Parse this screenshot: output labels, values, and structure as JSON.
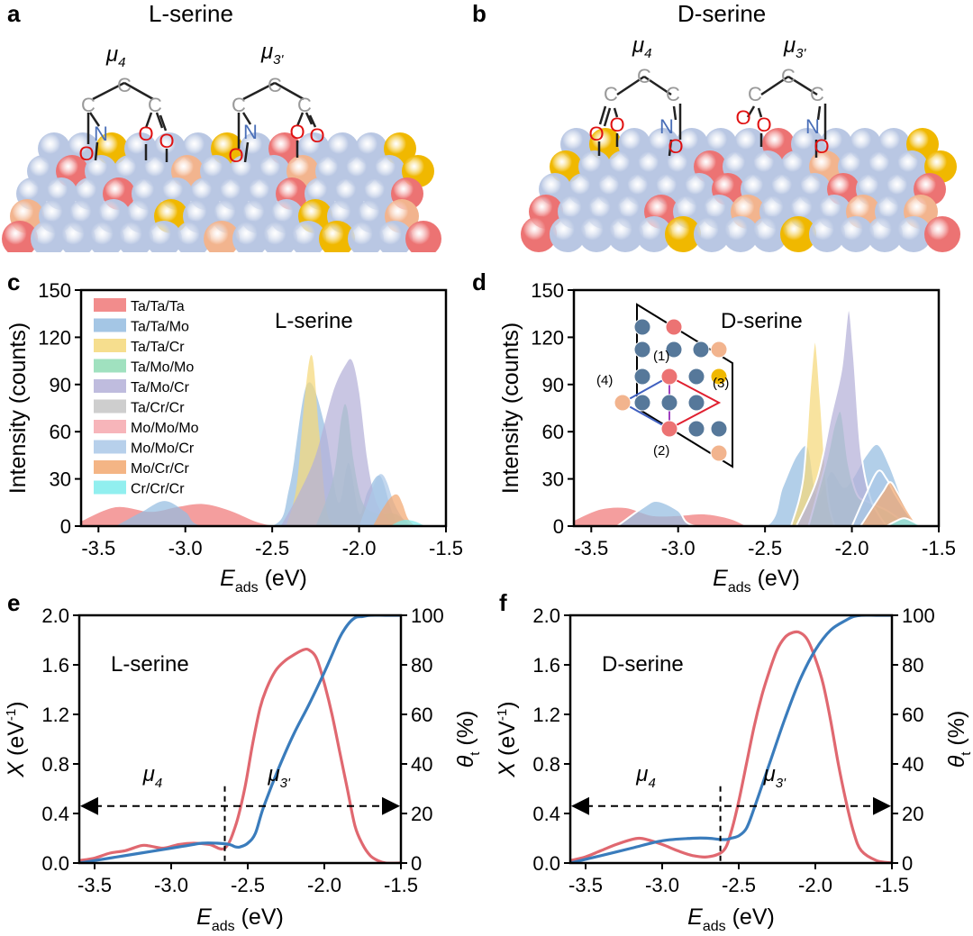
{
  "colors": {
    "TaTaTa": "#f07878",
    "TaTaMo": "#94bce0",
    "TaTaCr": "#f5d87a",
    "TaMoMo": "#8fdcb4",
    "TaMoCr": "#b4b0d8",
    "TaCrCr": "#c6c6c6",
    "MoMoMo": "#f6a8ae",
    "MoMoCr": "#aac8e8",
    "MoCrCr": "#f2a870",
    "CrCrCr": "#7eecec",
    "ta_atom": "#ec7373",
    "mo_atom": "#b9c7e3",
    "cr_atom": "#f0b800",
    "cr2_atom": "#f2b48e",
    "inset_mo": "#56789a",
    "X_curve": "#e06870",
    "theta_curve": "#3a7cbc"
  },
  "panels": {
    "a": {
      "label": "a",
      "title": "L-serine",
      "mu_left": "μ",
      "mu_left_sub": "4",
      "mu_right": "μ",
      "mu_right_sub": "3'"
    },
    "b": {
      "label": "b",
      "title": "D-serine",
      "mu_left": "μ",
      "mu_left_sub": "4",
      "mu_right": "μ",
      "mu_right_sub": "3'"
    },
    "c": {
      "label": "c"
    },
    "d": {
      "label": "d"
    },
    "e": {
      "label": "e"
    },
    "f": {
      "label": "f"
    }
  },
  "molecule": {
    "c": "C",
    "n": "N",
    "o": "O"
  },
  "inset": {
    "site1": "(1)",
    "site2": "(2)",
    "site3": "(3)",
    "site4": "(4)"
  },
  "chart_data": [
    {
      "id": "c",
      "type": "area",
      "title": "L-serine",
      "ylabel": "Intensity (counts)",
      "xlabel_main": "E",
      "xlabel_sub": "ads",
      "xlabel_unit": " (eV)",
      "xlim": [
        -3.6,
        -1.5
      ],
      "ylim": [
        0,
        150
      ],
      "xticks": [
        "-3.5",
        "-3.0",
        "-2.5",
        "-2.0",
        "-1.5"
      ],
      "xtick_values": [
        -3.5,
        -3.0,
        -2.5,
        -2.0,
        -1.5
      ],
      "yticks": [
        "0",
        "30",
        "60",
        "90",
        "120",
        "150"
      ],
      "ytick_values": [
        0,
        30,
        60,
        90,
        120,
        150
      ],
      "legend": [
        "Ta/Ta/Ta",
        "Ta/Ta/Mo",
        "Ta/Ta/Cr",
        "Ta/Mo/Mo",
        "Ta/Mo/Cr",
        "Ta/Cr/Cr",
        "Mo/Mo/Mo",
        "Mo/Mo/Cr",
        "Mo/Cr/Cr",
        "Cr/Cr/Cr"
      ],
      "series": [
        {
          "name": "Ta/Ta/Ta",
          "color_key": "TaTaTa",
          "x": [
            -3.6,
            -3.4,
            -3.2,
            -3.05,
            -2.9,
            -2.75,
            -2.6,
            -2.5
          ],
          "y": [
            3,
            12,
            9,
            12,
            14,
            10,
            3,
            0
          ]
        },
        {
          "name": "Ta/Ta/Mo",
          "color_key": "TaTaMo",
          "x": [
            -3.4,
            -3.25,
            -3.12,
            -3.0,
            -2.9,
            -2.5,
            -2.4,
            -2.3,
            -2.2,
            -2.12,
            -2.06,
            -2.0,
            -1.95,
            -1.88,
            -1.82,
            -1.78
          ],
          "y": [
            0,
            9,
            16,
            9,
            0,
            0,
            25,
            90,
            65,
            15,
            40,
            8,
            22,
            32,
            12,
            0
          ]
        },
        {
          "name": "Ta/Ta/Cr",
          "color_key": "TaTaCr",
          "x": [
            -2.42,
            -2.36,
            -2.31,
            -2.27,
            -2.23,
            -2.19,
            -2.15
          ],
          "y": [
            0,
            25,
            85,
            108,
            60,
            12,
            0
          ]
        },
        {
          "name": "Ta/Mo/Mo",
          "color_key": "TaMoMo",
          "x": [
            -2.25,
            -2.15,
            -2.1,
            -2.07,
            -2.03,
            -1.98,
            -1.9,
            -1.8,
            -1.74,
            -1.7
          ],
          "y": [
            0,
            30,
            70,
            75,
            40,
            15,
            8,
            8,
            4,
            0
          ]
        },
        {
          "name": "Ta/Mo/Cr",
          "color_key": "TaMoCr",
          "x": [
            -2.45,
            -2.35,
            -2.25,
            -2.15,
            -2.08,
            -2.04,
            -2.0,
            -1.95,
            -1.9,
            -1.84,
            -1.8
          ],
          "y": [
            0,
            20,
            45,
            85,
            102,
            105,
            85,
            40,
            15,
            5,
            0
          ]
        },
        {
          "name": "Mo/Mo/Cr",
          "color_key": "MoMoCr",
          "x": [
            -2.0,
            -1.95,
            -1.9,
            -1.87,
            -1.84,
            -1.8,
            -1.75,
            -1.7
          ],
          "y": [
            0,
            15,
            30,
            33,
            28,
            15,
            5,
            0
          ]
        },
        {
          "name": "Mo/Cr/Cr",
          "color_key": "MoCrCr",
          "x": [
            -1.92,
            -1.87,
            -1.82,
            -1.78,
            -1.75,
            -1.72,
            -1.68
          ],
          "y": [
            0,
            10,
            18,
            20,
            14,
            5,
            0
          ]
        },
        {
          "name": "Cr/Cr/Cr",
          "color_key": "CrCrCr",
          "x": [
            -1.82,
            -1.77,
            -1.73,
            -1.68,
            -1.62
          ],
          "y": [
            0,
            3,
            4,
            3,
            0
          ]
        }
      ]
    },
    {
      "id": "d",
      "type": "area",
      "title": "D-serine",
      "ylabel": "Intensity (counts)",
      "xlabel_main": "E",
      "xlabel_sub": "ads",
      "xlabel_unit": " (eV)",
      "xlim": [
        -3.6,
        -1.5
      ],
      "ylim": [
        0,
        150
      ],
      "xticks": [
        "-3.5",
        "-3.0",
        "-2.5",
        "-2.0",
        "-1.5"
      ],
      "xtick_values": [
        -3.5,
        -3.0,
        -2.5,
        -2.0,
        -1.5
      ],
      "yticks": [
        "0",
        "30",
        "60",
        "90",
        "120",
        "150"
      ],
      "ytick_values": [
        0,
        30,
        60,
        90,
        120,
        150
      ],
      "series": [
        {
          "name": "Ta/Ta/Ta",
          "color_key": "TaTaTa",
          "x": [
            -3.6,
            -3.45,
            -3.3,
            -3.15,
            -3.0,
            -2.85,
            -2.7,
            -2.6
          ],
          "y": [
            4,
            11,
            12,
            7,
            7,
            8,
            5,
            0
          ]
        },
        {
          "name": "Ta/Ta/Mo",
          "color_key": "TaTaMo",
          "x": [
            -3.35,
            -3.2,
            -3.12,
            -3.0,
            -2.9,
            -2.5,
            -2.4,
            -2.32,
            -2.25,
            -2.2,
            -2.12,
            -2.05,
            -2.0,
            -1.92,
            -1.85,
            -1.78,
            -1.7,
            -1.62
          ],
          "y": [
            0,
            12,
            16,
            10,
            0,
            0,
            25,
            45,
            50,
            20,
            35,
            25,
            30,
            45,
            52,
            38,
            15,
            0
          ]
        },
        {
          "name": "Ta/Ta/Cr",
          "color_key": "TaTaCr",
          "x": [
            -2.35,
            -2.28,
            -2.24,
            -2.21,
            -2.18,
            -2.14,
            -2.1
          ],
          "y": [
            0,
            30,
            90,
            118,
            80,
            20,
            0
          ]
        },
        {
          "name": "Ta/Mo/Mo",
          "color_key": "TaMoMo",
          "x": [
            -2.25,
            -2.15,
            -2.1,
            -2.06,
            -2.02,
            -1.97,
            -1.9,
            -1.8,
            -1.72,
            -1.65
          ],
          "y": [
            0,
            40,
            65,
            72,
            40,
            20,
            15,
            10,
            4,
            0
          ]
        },
        {
          "name": "Ta/Mo/Cr",
          "color_key": "TaMoCr",
          "x": [
            -2.32,
            -2.2,
            -2.12,
            -2.06,
            -2.02,
            -1.99,
            -1.95,
            -1.9,
            -1.85,
            -1.8
          ],
          "y": [
            0,
            30,
            70,
            100,
            138,
            110,
            50,
            20,
            8,
            0
          ]
        },
        {
          "name": "Mo/Mo/Cr",
          "color_key": "MoMoCr",
          "x": [
            -2.0,
            -1.92,
            -1.85,
            -1.8,
            -1.75,
            -1.68,
            -1.62
          ],
          "y": [
            0,
            20,
            35,
            30,
            20,
            8,
            0
          ]
        },
        {
          "name": "Mo/Cr/Cr",
          "color_key": "MoCrCr",
          "x": [
            -1.95,
            -1.88,
            -1.82,
            -1.78,
            -1.74,
            -1.68,
            -1.62
          ],
          "y": [
            0,
            12,
            22,
            28,
            22,
            10,
            0
          ]
        },
        {
          "name": "Cr/Cr/Cr",
          "color_key": "CrCrCr",
          "x": [
            -1.8,
            -1.75,
            -1.7,
            -1.65,
            -1.6
          ],
          "y": [
            0,
            3,
            5,
            3,
            0
          ]
        }
      ]
    },
    {
      "id": "e",
      "type": "line",
      "title": "L-serine",
      "ylabel_main": "X",
      "ylabel_unit": " (eV",
      "ylabel_sup": "-1",
      "ylabel_close": ")",
      "y2label_main": "θ",
      "y2label_sub": "t",
      "y2label_unit": " (%)",
      "xlabel_main": "E",
      "xlabel_sub": "ads",
      "xlabel_unit": " (eV)",
      "xlim": [
        -3.6,
        -1.5
      ],
      "ylim": [
        0,
        2.0
      ],
      "y2lim": [
        0,
        100
      ],
      "xticks": [
        "-3.5",
        "-3.0",
        "-2.5",
        "-2.0",
        "-1.5"
      ],
      "xtick_values": [
        -3.5,
        -3.0,
        -2.5,
        -2.0,
        -1.5
      ],
      "yticks": [
        "0.0",
        "0.4",
        "0.8",
        "1.2",
        "1.6",
        "2.0"
      ],
      "ytick_values": [
        0.0,
        0.4,
        0.8,
        1.2,
        1.6,
        2.0
      ],
      "y2ticks": [
        "0",
        "20",
        "40",
        "60",
        "80",
        "100"
      ],
      "y2tick_values": [
        0,
        20,
        40,
        60,
        80,
        100
      ],
      "divider_x": -2.65,
      "arrow_y": 0.46,
      "mu_left": "μ",
      "mu_left_sub": "4",
      "mu_right": "μ",
      "mu_right_sub": "3'",
      "series": [
        {
          "name": "X",
          "axis": "left",
          "color_key": "X_curve",
          "x": [
            -3.6,
            -3.5,
            -3.4,
            -3.3,
            -3.2,
            -3.15,
            -3.05,
            -2.95,
            -2.85,
            -2.75,
            -2.65,
            -2.58,
            -2.52,
            -2.47,
            -2.42,
            -2.38,
            -2.32,
            -2.26,
            -2.2,
            -2.14,
            -2.1,
            -2.05,
            -2.0,
            -1.95,
            -1.9,
            -1.85,
            -1.8,
            -1.75,
            -1.7,
            -1.65,
            -1.6,
            -1.5
          ],
          "y": [
            0.02,
            0.04,
            0.08,
            0.1,
            0.14,
            0.14,
            0.12,
            0.15,
            0.16,
            0.15,
            0.12,
            0.3,
            0.6,
            0.95,
            1.25,
            1.4,
            1.55,
            1.63,
            1.68,
            1.72,
            1.72,
            1.65,
            1.45,
            1.2,
            0.9,
            0.6,
            0.3,
            0.15,
            0.06,
            0.02,
            0.0,
            0.0
          ]
        },
        {
          "name": "θt",
          "axis": "right",
          "color_key": "theta_curve",
          "x": [
            -3.6,
            -3.4,
            -3.2,
            -3.0,
            -2.9,
            -2.8,
            -2.7,
            -2.62,
            -2.58,
            -2.55,
            -2.5,
            -2.45,
            -2.4,
            -2.3,
            -2.2,
            -2.1,
            -2.0,
            -1.95,
            -1.9,
            -1.85,
            -1.8,
            -1.75,
            -1.7,
            -1.6,
            -1.5
          ],
          "y": [
            0,
            2,
            4,
            6,
            7,
            8,
            8,
            7.5,
            6.5,
            6.5,
            8,
            12,
            22,
            38,
            52,
            64,
            77,
            84,
            91,
            96,
            99,
            99.5,
            100,
            100,
            100
          ]
        }
      ]
    },
    {
      "id": "f",
      "type": "line",
      "title": "D-serine",
      "ylabel_main": "X",
      "ylabel_unit": " (eV",
      "ylabel_sup": "-1",
      "ylabel_close": ")",
      "y2label_main": "θ",
      "y2label_sub": "t",
      "y2label_unit": " (%)",
      "xlabel_main": "E",
      "xlabel_sub": "ads",
      "xlabel_unit": " (eV)",
      "xlim": [
        -3.6,
        -1.5
      ],
      "ylim": [
        0,
        2.0
      ],
      "y2lim": [
        0,
        100
      ],
      "xticks": [
        "-3.5",
        "-3.0",
        "-2.5",
        "-2.0",
        "-1.5"
      ],
      "xtick_values": [
        -3.5,
        -3.0,
        -2.5,
        -2.0,
        -1.5
      ],
      "yticks": [
        "0.0",
        "0.4",
        "0.8",
        "1.2",
        "1.6",
        "2.0"
      ],
      "ytick_values": [
        0.0,
        0.4,
        0.8,
        1.2,
        1.6,
        2.0
      ],
      "y2ticks": [
        "0",
        "20",
        "40",
        "60",
        "80",
        "100"
      ],
      "y2tick_values": [
        0,
        20,
        40,
        60,
        80,
        100
      ],
      "divider_x": -2.62,
      "arrow_y": 0.46,
      "mu_left": "μ",
      "mu_left_sub": "4",
      "mu_right": "μ",
      "mu_right_sub": "3'",
      "series": [
        {
          "name": "X",
          "axis": "left",
          "color_key": "X_curve",
          "x": [
            -3.6,
            -3.5,
            -3.4,
            -3.3,
            -3.2,
            -3.15,
            -3.1,
            -3.0,
            -2.9,
            -2.8,
            -2.7,
            -2.6,
            -2.55,
            -2.5,
            -2.45,
            -2.4,
            -2.35,
            -2.3,
            -2.25,
            -2.2,
            -2.15,
            -2.1,
            -2.05,
            -2.0,
            -1.95,
            -1.9,
            -1.85,
            -1.8,
            -1.75,
            -1.7,
            -1.6,
            -1.5
          ],
          "y": [
            0.02,
            0.05,
            0.1,
            0.15,
            0.19,
            0.2,
            0.19,
            0.15,
            0.1,
            0.06,
            0.05,
            0.1,
            0.25,
            0.5,
            0.8,
            1.1,
            1.35,
            1.55,
            1.72,
            1.82,
            1.86,
            1.86,
            1.8,
            1.65,
            1.45,
            1.15,
            0.8,
            0.5,
            0.25,
            0.1,
            0.02,
            0.0
          ]
        },
        {
          "name": "θt",
          "axis": "right",
          "color_key": "theta_curve",
          "x": [
            -3.6,
            -3.4,
            -3.2,
            -3.0,
            -2.8,
            -2.7,
            -2.62,
            -2.58,
            -2.55,
            -2.5,
            -2.45,
            -2.4,
            -2.3,
            -2.2,
            -2.1,
            -2.0,
            -1.9,
            -1.8,
            -1.75,
            -1.7,
            -1.6,
            -1.5
          ],
          "y": [
            0,
            3,
            6,
            9,
            10,
            10,
            9.5,
            9.5,
            10,
            11,
            14,
            22,
            40,
            58,
            74,
            86,
            94,
            98,
            99.5,
            100,
            100,
            100
          ]
        }
      ]
    }
  ]
}
